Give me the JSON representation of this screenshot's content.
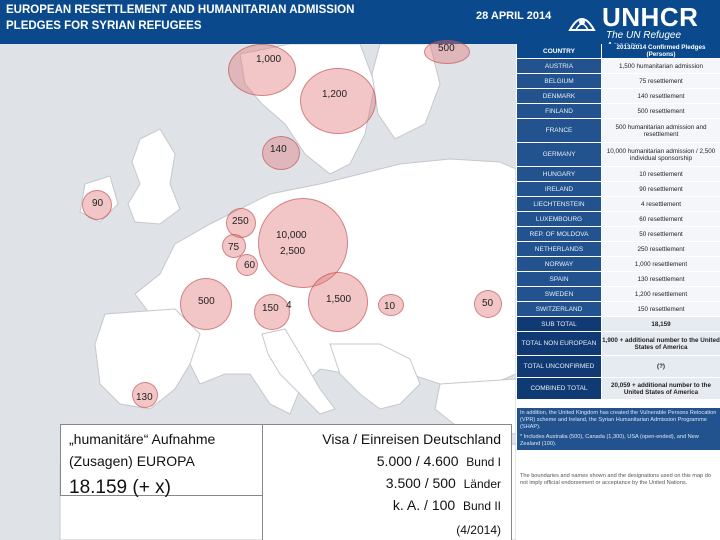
{
  "header": {
    "title_line1": "EUROPEAN RESETTLEMENT AND HUMANITARIAN ADMISSION",
    "title_line2": "PLEDGES FOR SYRIAN REFUGEES",
    "date": "28 APRIL 2014",
    "logo_name": "UNHCR",
    "logo_tagline": "The UN Refugee Agency"
  },
  "map": {
    "bubbles": [
      {
        "label": "1,000"
      },
      {
        "label": "500"
      },
      {
        "label": "1,200"
      },
      {
        "label": "140"
      },
      {
        "label": "90"
      },
      {
        "label": "250"
      },
      {
        "label": "75"
      },
      {
        "label": "60"
      },
      {
        "label": "10,000"
      },
      {
        "label": "2,500"
      },
      {
        "label": "500"
      },
      {
        "label": "150"
      },
      {
        "label": "4"
      },
      {
        "label": "1,500"
      },
      {
        "label": "10"
      },
      {
        "label": "50"
      },
      {
        "label": "130"
      }
    ]
  },
  "table": {
    "header": {
      "col1": "COUNTRY",
      "col2": "2013/2014 Confirmed Pledges (Persons)"
    },
    "rows": [
      {
        "country": "AUSTRIA",
        "pledge": "1,500 humanitarian admission"
      },
      {
        "country": "BELGIUM",
        "pledge": "75 resettlement"
      },
      {
        "country": "DENMARK",
        "pledge": "140 resettlement"
      },
      {
        "country": "FINLAND",
        "pledge": "500 resettlement"
      },
      {
        "country": "FRANCE",
        "pledge": "500 humanitarian admission and resettlement"
      },
      {
        "country": "GERMANY",
        "pledge": "10,000 humanitarian admission / 2,500 individual sponsorship"
      },
      {
        "country": "HUNGARY",
        "pledge": "10 resettlement"
      },
      {
        "country": "IRELAND",
        "pledge": "90 resettlement"
      },
      {
        "country": "LIECHTENSTEIN",
        "pledge": "4 resettlement"
      },
      {
        "country": "LUXEMBOURG",
        "pledge": "60 resettlement"
      },
      {
        "country": "REP. OF MOLDOVA",
        "pledge": "50 resettlement"
      },
      {
        "country": "NETHERLANDS",
        "pledge": "250 resettlement"
      },
      {
        "country": "NORWAY",
        "pledge": "1,000 resettlement"
      },
      {
        "country": "SPAIN",
        "pledge": "130 resettlement"
      },
      {
        "country": "SWEDEN",
        "pledge": "1,200 resettlement"
      },
      {
        "country": "SWITZERLAND",
        "pledge": "150 resettlement"
      }
    ],
    "subtotal": {
      "label": "SUB TOTAL",
      "value": "18,159"
    },
    "non_europe": {
      "label": "TOTAL NON EUROPEAN",
      "value": "1,900 + additional number to the United States of America"
    },
    "unconfirmed": {
      "label": "TOTAL UNCONFIRMED",
      "value": "(?)"
    },
    "combined": {
      "label": "COMBINED TOTAL",
      "value": "20,059 + additional number to the United States of America"
    }
  },
  "notes": {
    "text": "In addition, the United Kingdom has created the Vulnerable Persons Relocation (VPR) scheme and Ireland, the Syrian Humanitarian Admission Programme (SHAP).",
    "line2": "* Includes Australia (500), Canada (1,300), USA (open-ended), and New Zealand (100).",
    "footnote": "The boundaries and names shown and the designations used on this map do not imply official endorsement or acceptance by the United Nations."
  },
  "overlay_left": {
    "line1": "„humanitäre“ Aufnahme",
    "line2": "(Zusagen) EUROPA",
    "total": "18.159 (+ x)"
  },
  "overlay_right": {
    "line1": "Visa / Einreisen Deutschland",
    "line2_value": "5.000  / 4.600",
    "line2_unit": "Bund I",
    "line3_value": "3.500 /  500",
    "line3_unit": "Länder",
    "line4_value": "k. A.  /  100",
    "line4_unit": "Bund II",
    "date": "(4/2014)"
  }
}
